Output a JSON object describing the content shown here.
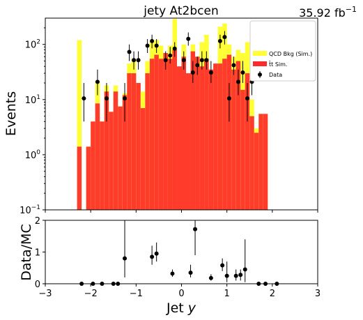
{
  "chart_data": {
    "type": "bar",
    "title": "jety  At2bcen",
    "lumi_label": "35.92",
    "lumi_unit": "fb",
    "lumi_exponent": "−1",
    "xlabel": "Jet",
    "xlabel_var": "y",
    "ylabel_top": "Events",
    "ylabel_bottom": "Data/MC",
    "xlim": [
      -3,
      3
    ],
    "xticks": [
      "−3",
      "−2",
      "−1",
      "0",
      "1",
      "2",
      "3"
    ],
    "top_panel": {
      "scale": "log",
      "ylim": [
        0.1,
        300
      ],
      "yticks": [
        {
          "value": 0.1,
          "base": "10",
          "exp": "−1"
        },
        {
          "value": 1,
          "base": "10",
          "exp": "0"
        },
        {
          "value": 10,
          "base": "10",
          "exp": "1"
        },
        {
          "value": 100,
          "base": "10",
          "exp": "2"
        }
      ]
    },
    "bottom_panel": {
      "scale": "linear",
      "ylim": [
        0,
        2
      ],
      "yticks": [
        "0",
        "1",
        "2"
      ]
    },
    "legend": {
      "placement": "top-right",
      "entries": [
        {
          "label": "QCD Bkg (Sim.)",
          "kind": "patch",
          "color": "#ffff33"
        },
        {
          "label_sup": "t̄t",
          "label": " Sim.",
          "kind": "patch",
          "color": "#ff2a2a"
        },
        {
          "label": "Data",
          "kind": "errorbar",
          "color": "#000000"
        }
      ]
    },
    "colors": {
      "qcd": "#ffff33",
      "ttbar": "#ff2a2a",
      "data": "#000000"
    },
    "bins": {
      "edges": [
        -2.3,
        -2.2,
        -2.1,
        -2.0,
        -1.9,
        -1.8,
        -1.7,
        -1.6,
        -1.5,
        -1.4,
        -1.3,
        -1.2,
        -1.1,
        -1.0,
        -0.9,
        -0.8,
        -0.7,
        -0.6,
        -0.5,
        -0.4,
        -0.3,
        -0.2,
        -0.1,
        0.0,
        0.1,
        0.2,
        0.3,
        0.4,
        0.5,
        0.6,
        0.7,
        0.8,
        0.9,
        1.0,
        1.1,
        1.2,
        1.3,
        1.4,
        1.5,
        1.6,
        1.7,
        1.8,
        1.9
      ],
      "ttbar": [
        1.4,
        0,
        1.4,
        4,
        8.5,
        4,
        14,
        6,
        14,
        7.5,
        12,
        30,
        30,
        20,
        7,
        30,
        55,
        65,
        55,
        70,
        55,
        80,
        40,
        60,
        30,
        75,
        60,
        40,
        55,
        35,
        45,
        45,
        55,
        65,
        35,
        50,
        15,
        30,
        5,
        2.5,
        5.5,
        5.5
      ],
      "qcd_total": [
        120,
        0,
        1.4,
        4,
        22,
        4,
        18,
        6,
        18,
        7.5,
        13,
        45,
        55,
        20,
        14,
        50,
        110,
        120,
        95,
        70,
        95,
        290,
        40,
        100,
        30,
        100,
        60,
        110,
        150,
        35,
        45,
        210,
        240,
        100,
        60,
        80,
        70,
        110,
        10,
        3,
        5.5,
        5.5
      ]
    },
    "data_points": [
      {
        "x": -2.15,
        "y": 10.5,
        "lo": 4,
        "hi": 20
      },
      {
        "x": -1.85,
        "y": 21,
        "lo": 12,
        "hi": 35
      },
      {
        "x": -1.65,
        "y": 10.5,
        "lo": 4,
        "hi": 20
      },
      {
        "x": -1.25,
        "y": 10.5,
        "lo": 4,
        "hi": 20
      },
      {
        "x": -1.15,
        "y": 73,
        "lo": 50,
        "hi": 100
      },
      {
        "x": -1.05,
        "y": 52,
        "lo": 35,
        "hi": 75
      },
      {
        "x": -0.95,
        "y": 52,
        "lo": 35,
        "hi": 75
      },
      {
        "x": -0.75,
        "y": 95,
        "lo": 70,
        "hi": 125
      },
      {
        "x": -0.65,
        "y": 115,
        "lo": 85,
        "hi": 150
      },
      {
        "x": -0.55,
        "y": 95,
        "lo": 70,
        "hi": 125
      },
      {
        "x": -0.35,
        "y": 52,
        "lo": 35,
        "hi": 75
      },
      {
        "x": -0.25,
        "y": 63,
        "lo": 45,
        "hi": 90
      },
      {
        "x": -0.15,
        "y": 84,
        "lo": 60,
        "hi": 110
      },
      {
        "x": 0.05,
        "y": 52,
        "lo": 35,
        "hi": 75
      },
      {
        "x": 0.15,
        "y": 126,
        "lo": 95,
        "hi": 165
      },
      {
        "x": 0.25,
        "y": 31,
        "lo": 20,
        "hi": 50
      },
      {
        "x": 0.35,
        "y": 42,
        "lo": 28,
        "hi": 60
      },
      {
        "x": 0.45,
        "y": 52,
        "lo": 35,
        "hi": 75
      },
      {
        "x": 0.55,
        "y": 52,
        "lo": 35,
        "hi": 75
      },
      {
        "x": 0.65,
        "y": 31,
        "lo": 20,
        "hi": 50
      },
      {
        "x": 0.85,
        "y": 115,
        "lo": 85,
        "hi": 150
      },
      {
        "x": 0.95,
        "y": 136,
        "lo": 100,
        "hi": 175
      },
      {
        "x": 1.05,
        "y": 10.5,
        "lo": 4,
        "hi": 20
      },
      {
        "x": 1.15,
        "y": 42,
        "lo": 28,
        "hi": 60
      },
      {
        "x": 1.25,
        "y": 21,
        "lo": 12,
        "hi": 35
      },
      {
        "x": 1.35,
        "y": 31,
        "lo": 20,
        "hi": 50
      },
      {
        "x": 1.45,
        "y": 10.5,
        "lo": 4,
        "hi": 20
      },
      {
        "x": 1.55,
        "y": 21,
        "lo": 12,
        "hi": 35
      }
    ],
    "ratio_points": [
      {
        "x": -2.2,
        "y": 0,
        "lo": 0,
        "hi": 0
      },
      {
        "x": -1.95,
        "y": 0,
        "lo": 0,
        "hi": 0
      },
      {
        "x": -1.75,
        "y": 0,
        "lo": 0,
        "hi": 0
      },
      {
        "x": -1.5,
        "y": 0,
        "lo": 0,
        "hi": 0
      },
      {
        "x": -1.4,
        "y": 0,
        "lo": 0,
        "hi": 0
      },
      {
        "x": -1.25,
        "y": 0.8,
        "lo": 0.2,
        "hi": 2.0
      },
      {
        "x": -0.65,
        "y": 0.85,
        "lo": 0.6,
        "hi": 1.2
      },
      {
        "x": -0.55,
        "y": 0.95,
        "lo": 0.7,
        "hi": 1.3
      },
      {
        "x": -0.2,
        "y": 0.32,
        "lo": 0.22,
        "hi": 0.45
      },
      {
        "x": 0.2,
        "y": 0.35,
        "lo": 0.2,
        "hi": 0.6
      },
      {
        "x": 0.3,
        "y": 1.72,
        "lo": 0.9,
        "hi": 2.0
      },
      {
        "x": 0.65,
        "y": 0.18,
        "lo": 0.1,
        "hi": 0.3
      },
      {
        "x": 0.9,
        "y": 0.58,
        "lo": 0.4,
        "hi": 0.8
      },
      {
        "x": 1.0,
        "y": 0.25,
        "lo": 0.05,
        "hi": 0.7
      },
      {
        "x": 1.2,
        "y": 0.25,
        "lo": 0.1,
        "hi": 0.45
      },
      {
        "x": 1.3,
        "y": 0.28,
        "lo": 0.1,
        "hi": 0.45
      },
      {
        "x": 1.4,
        "y": 0.45,
        "lo": 0.05,
        "hi": 1.4
      },
      {
        "x": 1.7,
        "y": 0,
        "lo": 0,
        "hi": 0
      },
      {
        "x": 1.85,
        "y": 0,
        "lo": 0,
        "hi": 0
      },
      {
        "x": 2.1,
        "y": 0,
        "lo": 0,
        "hi": 0
      }
    ]
  }
}
